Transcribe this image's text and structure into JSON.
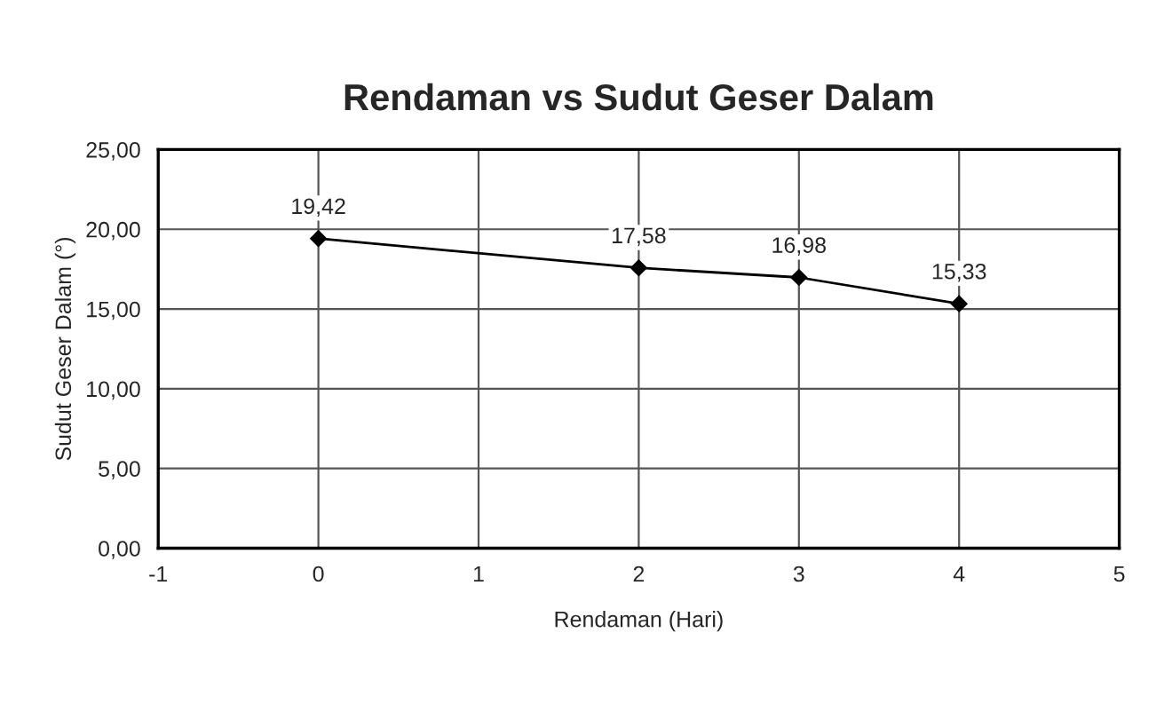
{
  "chart_data": {
    "type": "line",
    "title": "Rendaman vs Sudut Geser Dalam",
    "xlabel": "Rendaman (Hari)",
    "ylabel": "Sudut Geser Dalam (°)",
    "x": [
      0,
      2,
      3,
      4
    ],
    "series": [
      {
        "color": "#000000",
        "values": [
          19.42,
          17.58,
          16.98,
          15.33
        ],
        "value_labels": [
          "19,42",
          "17,58",
          "16,98",
          "15,33"
        ]
      }
    ],
    "xlim": [
      -1,
      5
    ],
    "xticks": [
      -1,
      0,
      1,
      2,
      3,
      4,
      5
    ],
    "ylim": [
      0,
      25
    ],
    "yticks": [
      {
        "value": 0,
        "label": "0,00"
      },
      {
        "value": 5,
        "label": "5,00"
      },
      {
        "value": 10,
        "label": "10,00"
      },
      {
        "value": 15,
        "label": "15,00"
      },
      {
        "value": 20,
        "label": "20,00"
      },
      {
        "value": 25,
        "label": "25,00"
      }
    ],
    "grid": true,
    "legend": false,
    "marker": "diamond",
    "line_style": "solid"
  }
}
